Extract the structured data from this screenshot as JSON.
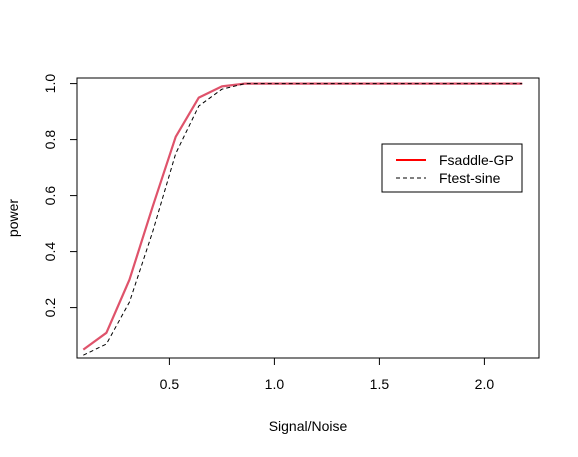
{
  "chart_data": {
    "type": "line",
    "title": "",
    "xlabel": "Signal/Noise",
    "ylabel": "power",
    "xlim": [
      0.06,
      2.26
    ],
    "ylim": [
      0.02,
      1.02
    ],
    "xticks": [
      0.5,
      1.0,
      1.5,
      2.0
    ],
    "xtick_labels": [
      "0.5",
      "1.0",
      "1.5",
      "2.0"
    ],
    "yticks": [
      0.2,
      0.4,
      0.6,
      0.8,
      1.0
    ],
    "ytick_labels": [
      "0.2",
      "0.4",
      "0.6",
      "0.8",
      "1.0"
    ],
    "grid": false,
    "legend_position": "right",
    "series": [
      {
        "name": "Fsaddle-GP",
        "color": "#DF536B",
        "legend_color": "#FF0000",
        "line_style": "solid",
        "x": [
          0.09,
          0.2,
          0.31,
          0.42,
          0.53,
          0.64,
          0.75,
          0.86,
          0.97,
          1.5,
          2.18
        ],
        "y": [
          0.05,
          0.11,
          0.3,
          0.56,
          0.81,
          0.95,
          0.99,
          1.0,
          1.0,
          1.0,
          1.0
        ]
      },
      {
        "name": "Ftest-sine",
        "color": "#000000",
        "legend_color": "#000000",
        "line_style": "dashed",
        "x": [
          0.09,
          0.2,
          0.31,
          0.42,
          0.53,
          0.64,
          0.75,
          0.86,
          0.97,
          1.5,
          2.18
        ],
        "y": [
          0.03,
          0.07,
          0.22,
          0.47,
          0.75,
          0.92,
          0.98,
          1.0,
          1.0,
          1.0,
          1.0
        ]
      }
    ]
  }
}
